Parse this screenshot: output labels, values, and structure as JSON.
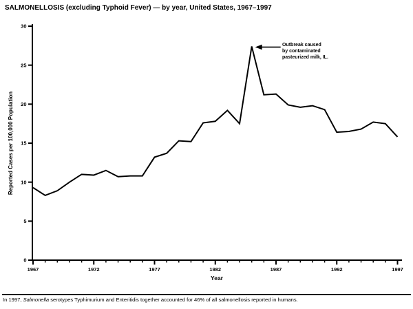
{
  "title": "SALMONELLOSIS (excluding Typhoid Fever) — by year, United States, 1967–1997",
  "chart_data": {
    "type": "line",
    "title": "SALMONELLOSIS (excluding Typhoid Fever) — by year, United States, 1967–1997",
    "xlabel": "Year",
    "ylabel": "Reported Cases per 100,000 Population",
    "ylim": [
      0,
      30
    ],
    "yticks": [
      0,
      5,
      10,
      15,
      20,
      25,
      30
    ],
    "xtick_labels": [
      "1967",
      "1972",
      "1977",
      "1982",
      "1987",
      "1992",
      "1997"
    ],
    "grid": "off",
    "legend": "none",
    "line_color": "#000000",
    "x": [
      1967,
      1968,
      1969,
      1970,
      1971,
      1972,
      1973,
      1974,
      1975,
      1976,
      1977,
      1978,
      1979,
      1980,
      1981,
      1982,
      1983,
      1984,
      1985,
      1986,
      1987,
      1988,
      1989,
      1990,
      1991,
      1992,
      1993,
      1994,
      1995,
      1996,
      1997
    ],
    "values": [
      9.3,
      8.3,
      8.9,
      10.0,
      11.0,
      10.9,
      11.5,
      10.7,
      10.8,
      10.8,
      13.2,
      13.7,
      15.3,
      15.2,
      17.6,
      17.8,
      19.2,
      17.5,
      27.4,
      21.2,
      21.3,
      19.9,
      19.6,
      19.8,
      19.3,
      16.4,
      16.5,
      16.8,
      17.7,
      17.5,
      15.8
    ],
    "annotation": {
      "target_year": 1985,
      "lines": [
        "Outbreak caused",
        "by contaminated",
        "pasteurized milk, IL."
      ]
    }
  },
  "footnote": {
    "prefix": "In 1997, ",
    "italic": "Salmonella",
    "rest": " serotypes Typhimurium and Enteritidis together accounted for 46% of all salmonellosis reported in humans."
  }
}
